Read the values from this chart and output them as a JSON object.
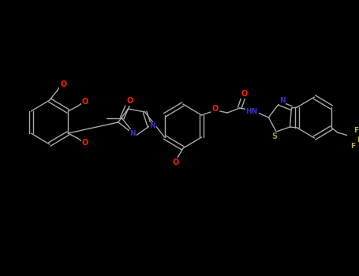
{
  "background": "#000000",
  "fig_width": 4.55,
  "fig_height": 3.5,
  "dpi": 100,
  "bond_color": "#aaaaaa",
  "atom_colors": {
    "O": "#ff2200",
    "N": "#3333cc",
    "S": "#999933",
    "F": "#b8b830",
    "C": "#aaaaaa"
  },
  "xlim": [
    0,
    455
  ],
  "ylim": [
    0,
    350
  ]
}
